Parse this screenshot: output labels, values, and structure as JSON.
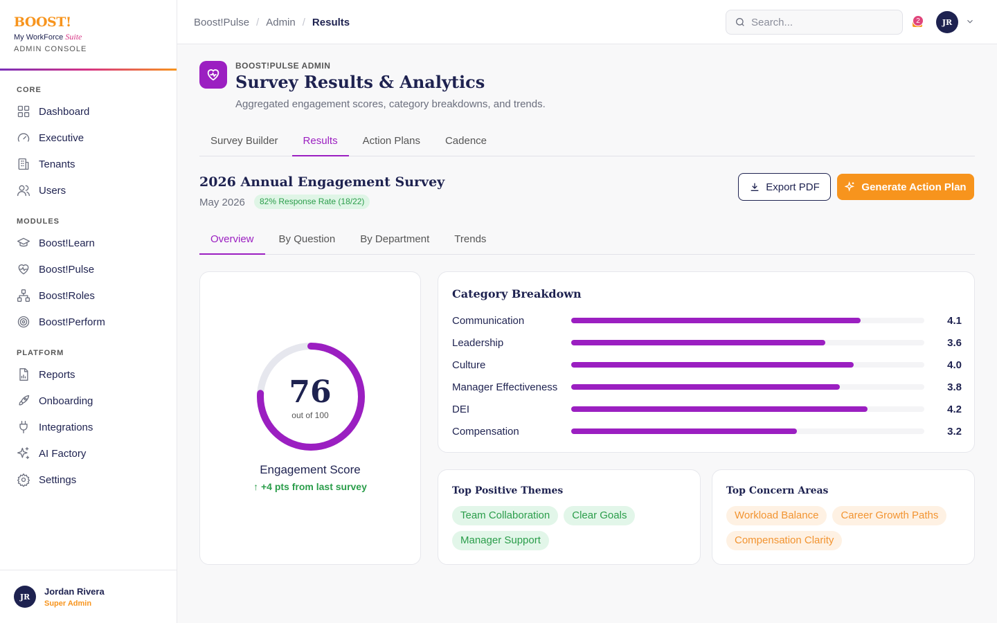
{
  "brand": {
    "logo": "BOOST!",
    "sub": "My WorkForce",
    "suite": "Suite",
    "console": "ADMIN CONSOLE"
  },
  "nav": {
    "core_label": "CORE",
    "core": [
      {
        "label": "Dashboard",
        "icon": "grid-icon"
      },
      {
        "label": "Executive",
        "icon": "gauge-icon"
      },
      {
        "label": "Tenants",
        "icon": "building-icon"
      },
      {
        "label": "Users",
        "icon": "users-icon"
      }
    ],
    "modules_label": "MODULES",
    "modules": [
      {
        "label": "Boost!Learn",
        "icon": "graduation-cap-icon"
      },
      {
        "label": "Boost!Pulse",
        "icon": "heart-pulse-icon"
      },
      {
        "label": "Boost!Roles",
        "icon": "org-chart-icon"
      },
      {
        "label": "Boost!Perform",
        "icon": "target-icon"
      }
    ],
    "platform_label": "PLATFORM",
    "platform": [
      {
        "label": "Reports",
        "icon": "report-icon"
      },
      {
        "label": "Onboarding",
        "icon": "rocket-icon"
      },
      {
        "label": "Integrations",
        "icon": "plug-icon"
      },
      {
        "label": "AI Factory",
        "icon": "sparkles-icon"
      },
      {
        "label": "Settings",
        "icon": "gear-icon"
      }
    ]
  },
  "user": {
    "initials": "JR",
    "name": "Jordan Rivera",
    "role": "Super Admin"
  },
  "topbar": {
    "crumbs": [
      "Boost!Pulse",
      "Admin",
      "Results"
    ],
    "search_placeholder": "Search...",
    "notifications": "2",
    "initials": "JR"
  },
  "header": {
    "eyebrow": "BOOST!PULSE ADMIN",
    "title": "Survey Results & Analytics",
    "subtitle": "Aggregated engagement scores, category breakdowns, and trends."
  },
  "tabs": [
    {
      "label": "Survey Builder"
    },
    {
      "label": "Results",
      "active": true
    },
    {
      "label": "Action Plans"
    },
    {
      "label": "Cadence"
    }
  ],
  "survey": {
    "title": "2026 Annual Engagement Survey",
    "date": "May 2026",
    "response_rate": "82% Response Rate (18/22)",
    "export_label": "Export PDF",
    "generate_label": "Generate Action Plan"
  },
  "subtabs": [
    {
      "label": "Overview",
      "active": true
    },
    {
      "label": "By Question"
    },
    {
      "label": "By Department"
    },
    {
      "label": "Trends"
    }
  ],
  "score": {
    "value": "76",
    "progress": 0.76,
    "out_of": "out of 100",
    "label": "Engagement Score",
    "delta": "+4 pts from last survey"
  },
  "categories": {
    "title": "Category Breakdown",
    "max": 5,
    "items": [
      {
        "name": "Communication",
        "score": 4.1,
        "display": "4.1"
      },
      {
        "name": "Leadership",
        "score": 3.6,
        "display": "3.6"
      },
      {
        "name": "Culture",
        "score": 4.0,
        "display": "4.0"
      },
      {
        "name": "Manager Effectiveness",
        "score": 3.8,
        "display": "3.8"
      },
      {
        "name": "DEI",
        "score": 4.2,
        "display": "4.2"
      },
      {
        "name": "Compensation",
        "score": 3.2,
        "display": "3.2"
      }
    ]
  },
  "positive": {
    "title": "Top Positive Themes",
    "items": [
      "Team Collaboration",
      "Clear Goals",
      "Manager Support"
    ]
  },
  "concerns": {
    "title": "Top Concern Areas",
    "items": [
      "Workload Balance",
      "Career Growth Paths",
      "Compensation Clarity"
    ]
  },
  "colors": {
    "accent": "#9b1fc1",
    "brand_orange": "#f7941d",
    "navy": "#1e2250",
    "positive": "#2a9d4a"
  }
}
